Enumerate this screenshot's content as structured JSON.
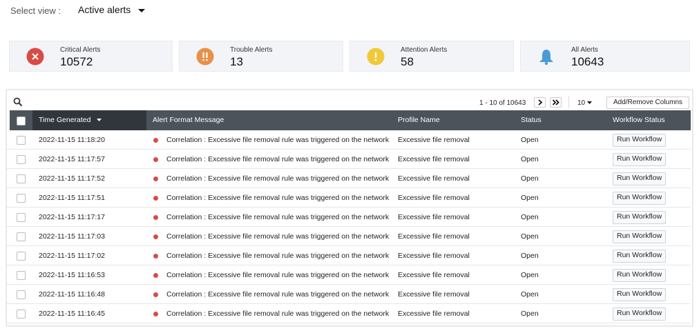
{
  "header": {
    "label": "Select view :",
    "view": "Active alerts"
  },
  "summary": [
    {
      "label": "Critical Alerts",
      "count": 10572
    },
    {
      "label": "Trouble Alerts",
      "count": 13
    },
    {
      "label": "Attention Alerts",
      "count": 58
    },
    {
      "label": "All Alerts",
      "count": 10643
    }
  ],
  "pagination": {
    "range": "1 - 10 of 10643",
    "page_size": "10",
    "columns_button": "Add/Remove Columns"
  },
  "table": {
    "columns": [
      "Time Generated",
      "Alert Format Message",
      "Profile Name",
      "Status",
      "Workflow Status"
    ],
    "rows": [
      [
        "2022-11-15 11:18:20",
        "Correlation : Excessive file removal rule was triggered on the network",
        "Excessive file removal",
        "Open",
        "Run Workflow"
      ],
      [
        "2022-11-15 11:17:57",
        "Correlation : Excessive file removal rule was triggered on the network",
        "Excessive file removal",
        "Open",
        "Run Workflow"
      ],
      [
        "2022-11-15 11:17:52",
        "Correlation : Excessive file removal rule was triggered on the network",
        "Excessive file removal",
        "Open",
        "Run Workflow"
      ],
      [
        "2022-11-15 11:17:51",
        "Correlation : Excessive file removal rule was triggered on the network",
        "Excessive file removal",
        "Open",
        "Run Workflow"
      ],
      [
        "2022-11-15 11:17:17",
        "Correlation : Excessive file removal rule was triggered on the network",
        "Excessive file removal",
        "Open",
        "Run Workflow"
      ],
      [
        "2022-11-15 11:17:03",
        "Correlation : Excessive file removal rule was triggered on the network",
        "Excessive file removal",
        "Open",
        "Run Workflow"
      ],
      [
        "2022-11-15 11:17:02",
        "Correlation : Excessive file removal rule was triggered on the network",
        "Excessive file removal",
        "Open",
        "Run Workflow"
      ],
      [
        "2022-11-15 11:16:53",
        "Correlation : Excessive file removal rule was triggered on the network",
        "Excessive file removal",
        "Open",
        "Run Workflow"
      ],
      [
        "2022-11-15 11:16:48",
        "Correlation : Excessive file removal rule was triggered on the network",
        "Excessive file removal",
        "Open",
        "Run Workflow"
      ],
      [
        "2022-11-15 11:16:45",
        "Correlation : Excessive file removal rule was triggered on the network",
        "Excessive file removal",
        "Open",
        "Run Workflow"
      ]
    ]
  }
}
